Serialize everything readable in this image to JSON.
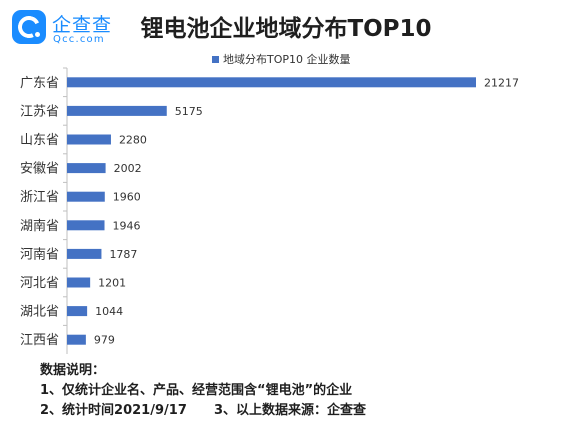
{
  "brand": {
    "name": "企查查",
    "url": "Qcc.com",
    "logo_color": "#1a8cff"
  },
  "notes": {
    "heading": "数据说明：",
    "line1": "1、仅统计企业名、产品、经营范围含“锂电池”的企业",
    "line2": "2、统计时间2021/9/17      3、以上数据来源：企查查"
  },
  "chart_data": {
    "type": "bar",
    "orientation": "horizontal",
    "title": "锂电池企业地域分布TOP10",
    "categories": [
      "广东省",
      "江苏省",
      "山东省",
      "安徽省",
      "浙江省",
      "湖南省",
      "河南省",
      "河北省",
      "湖北省",
      "江西省"
    ],
    "series": [
      {
        "name": "地域分布TOP10 企业数量",
        "values": [
          21217,
          5175,
          2280,
          2002,
          1960,
          1946,
          1787,
          1201,
          1044,
          979
        ],
        "color": "#4472c4"
      }
    ],
    "data_labels": true,
    "legend_position": "top",
    "grid": false,
    "xlim": [
      0,
      21217
    ]
  }
}
